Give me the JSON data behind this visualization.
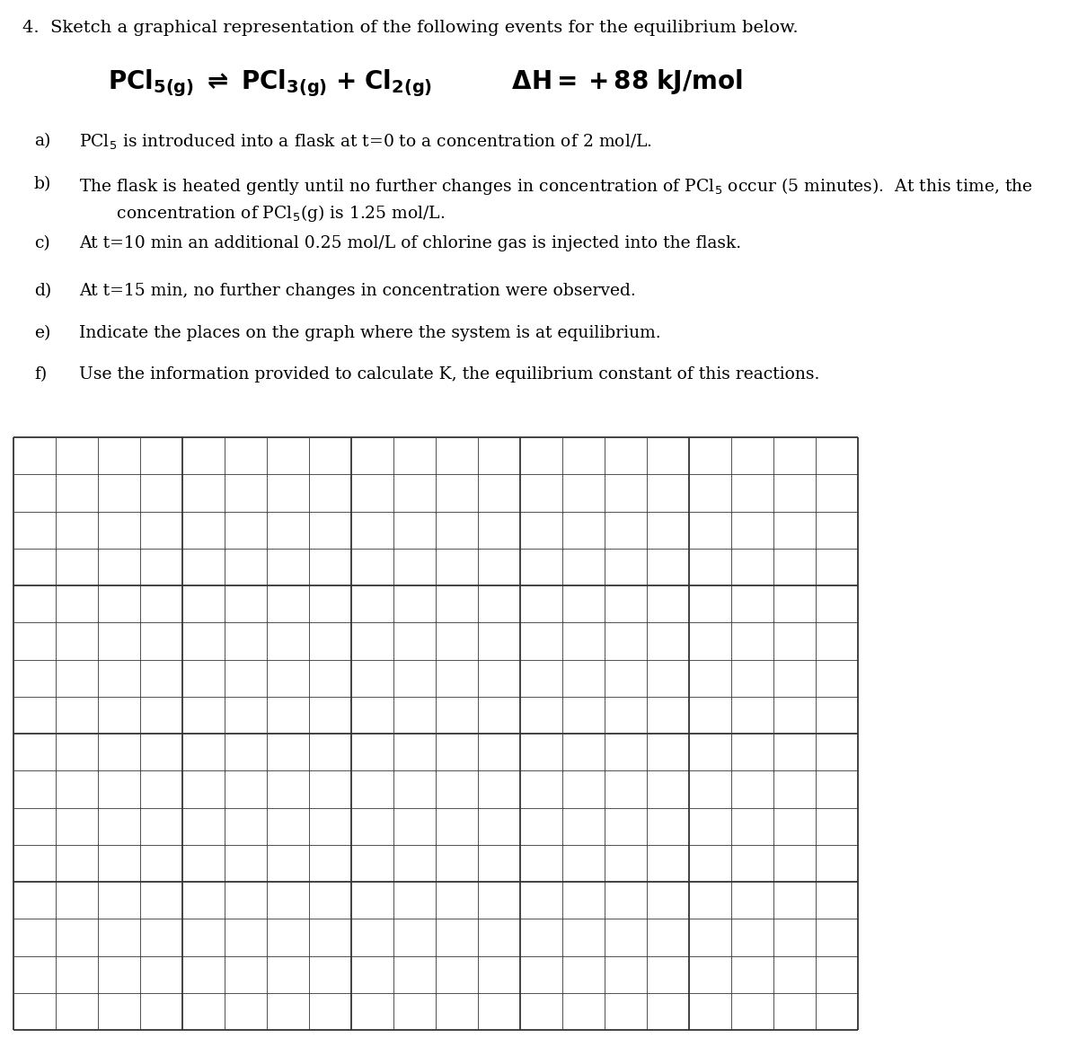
{
  "background_color": "#ffffff",
  "page_title": "4.  Sketch a graphical representation of the following events for the equilibrium below.",
  "items": [
    {
      "label": "a)",
      "text": "PCl$_5$ is introduced into a flask at t=0 to a concentration of 2 mol/L."
    },
    {
      "label": "b)",
      "text": "The flask is heated gently until no further changes in concentration of PCl$_5$ occur (5 minutes).  At this time, the\n       concentration of PCl$_5$(g) is 1.25 mol/L."
    },
    {
      "label": "c)",
      "text": "At t=10 min an additional 0.25 mol/L of chlorine gas is injected into the flask."
    },
    {
      "label": "d)",
      "text": "At t=15 min, no further changes in concentration were observed."
    },
    {
      "label": "e)",
      "text": "Indicate the places on the graph where the system is at equilibrium."
    },
    {
      "label": "f)",
      "text": "Use the information provided to calculate K, the equilibrium constant of this reactions."
    }
  ],
  "grid_rows": 16,
  "grid_cols": 20,
  "grid_color": "#333333",
  "grid_linewidth_minor": 0.6,
  "grid_linewidth_major": 1.3,
  "major_every_rows": 4,
  "major_every_cols": 4,
  "title_fontsize": 14,
  "equation_fontsize": 20,
  "item_fontsize": 13.5
}
